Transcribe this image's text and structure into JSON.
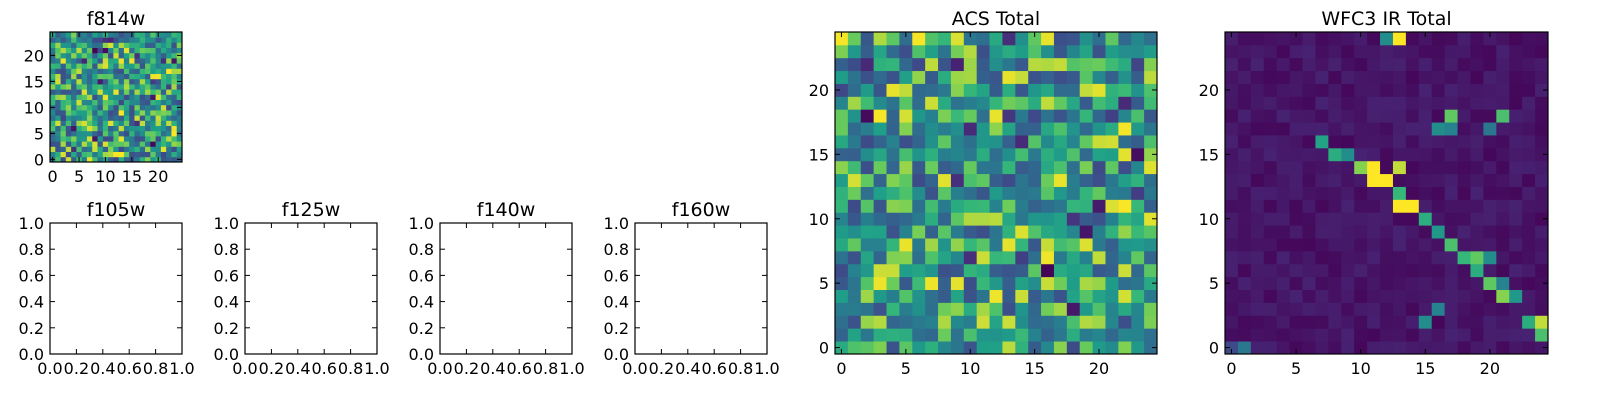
{
  "chart_data": [
    {
      "type": "heatmap",
      "title": "f814w",
      "xlim": [
        -0.5,
        24.5
      ],
      "ylim": [
        -0.5,
        24.5
      ],
      "xticks": [
        0,
        5,
        10,
        15,
        20
      ],
      "yticks": [
        0,
        5,
        10,
        15,
        20
      ],
      "grid": false,
      "colormap": "viridis",
      "grid_size": [
        25,
        25
      ],
      "values": "random uniform noise"
    },
    {
      "type": "scatter",
      "title": "f105w",
      "xlim": [
        0.0,
        1.0
      ],
      "ylim": [
        0.0,
        1.0
      ],
      "xticks": [
        "0.0",
        "0.2",
        "0.4",
        "0.6",
        "0.8",
        "1.0"
      ],
      "yticks": [
        "0.0",
        "0.2",
        "0.4",
        "0.6",
        "0.8",
        "1.0"
      ],
      "empty": true
    },
    {
      "type": "scatter",
      "title": "f125w",
      "xlim": [
        0.0,
        1.0
      ],
      "ylim": [
        0.0,
        1.0
      ],
      "xticks": [
        "0.0",
        "0.2",
        "0.4",
        "0.6",
        "0.8",
        "1.0"
      ],
      "yticks": [
        "0.0",
        "0.2",
        "0.4",
        "0.6",
        "0.8",
        "1.0"
      ],
      "empty": true
    },
    {
      "type": "scatter",
      "title": "f140w",
      "xlim": [
        0.0,
        1.0
      ],
      "ylim": [
        0.0,
        1.0
      ],
      "xticks": [
        "0.0",
        "0.2",
        "0.4",
        "0.6",
        "0.8",
        "1.0"
      ],
      "yticks": [
        "0.0",
        "0.2",
        "0.4",
        "0.6",
        "0.8",
        "1.0"
      ],
      "empty": true
    },
    {
      "type": "scatter",
      "title": "f160w",
      "xlim": [
        0.0,
        1.0
      ],
      "ylim": [
        0.0,
        1.0
      ],
      "xticks": [
        "0.0",
        "0.2",
        "0.4",
        "0.6",
        "0.8",
        "1.0"
      ],
      "yticks": [
        "0.0",
        "0.2",
        "0.4",
        "0.6",
        "0.8",
        "1.0"
      ],
      "empty": true
    },
    {
      "type": "heatmap",
      "title": "ACS Total",
      "xlim": [
        -0.5,
        24.5
      ],
      "ylim": [
        -0.5,
        24.5
      ],
      "xticks": [
        0,
        5,
        10,
        15,
        20
      ],
      "yticks": [
        0,
        5,
        10,
        15,
        20
      ],
      "grid": false,
      "colormap": "viridis",
      "grid_size": [
        25,
        25
      ],
      "values": "random uniform noise"
    },
    {
      "type": "heatmap",
      "title": "WFC3 IR Total",
      "xlim": [
        -0.5,
        24.5
      ],
      "ylim": [
        -0.5,
        24.5
      ],
      "xticks": [
        0,
        5,
        10,
        15,
        20
      ],
      "yticks": [
        0,
        5,
        10,
        15,
        20
      ],
      "grid": false,
      "colormap": "viridis",
      "grid_size": [
        25,
        25
      ],
      "values": "low background with a bright diagonal band from (24,1) to (7,16)",
      "bright_cells": [
        {
          "x": 13,
          "y": 24,
          "v": 1.0
        },
        {
          "x": 12,
          "y": 24,
          "v": 0.55
        },
        {
          "x": 16,
          "y": 17,
          "v": 0.55
        },
        {
          "x": 17,
          "y": 17,
          "v": 0.5
        },
        {
          "x": 17,
          "y": 18,
          "v": 0.85
        },
        {
          "x": 20,
          "y": 17,
          "v": 0.45
        },
        {
          "x": 21,
          "y": 18,
          "v": 0.8
        },
        {
          "x": 7,
          "y": 16,
          "v": 0.65
        },
        {
          "x": 8,
          "y": 15,
          "v": 0.7
        },
        {
          "x": 9,
          "y": 15,
          "v": 0.55
        },
        {
          "x": 10,
          "y": 14,
          "v": 0.9
        },
        {
          "x": 11,
          "y": 14,
          "v": 1.0
        },
        {
          "x": 13,
          "y": 14,
          "v": 0.95
        },
        {
          "x": 11,
          "y": 13,
          "v": 1.0
        },
        {
          "x": 12,
          "y": 13,
          "v": 1.0
        },
        {
          "x": 13,
          "y": 12,
          "v": 0.75
        },
        {
          "x": 13,
          "y": 11,
          "v": 1.0
        },
        {
          "x": 14,
          "y": 11,
          "v": 1.0
        },
        {
          "x": 15,
          "y": 10,
          "v": 0.7
        },
        {
          "x": 16,
          "y": 9,
          "v": 0.6
        },
        {
          "x": 17,
          "y": 8,
          "v": 0.8
        },
        {
          "x": 18,
          "y": 7,
          "v": 0.75
        },
        {
          "x": 19,
          "y": 7,
          "v": 0.85
        },
        {
          "x": 20,
          "y": 7,
          "v": 0.55
        },
        {
          "x": 19,
          "y": 6,
          "v": 0.7
        },
        {
          "x": 20,
          "y": 5,
          "v": 0.85
        },
        {
          "x": 21,
          "y": 4,
          "v": 0.9
        },
        {
          "x": 21,
          "y": 5,
          "v": 0.5
        },
        {
          "x": 22,
          "y": 4,
          "v": 0.6
        },
        {
          "x": 16,
          "y": 3,
          "v": 0.5
        },
        {
          "x": 15,
          "y": 2,
          "v": 0.55
        },
        {
          "x": 23,
          "y": 2,
          "v": 0.7
        },
        {
          "x": 24,
          "y": 2,
          "v": 0.95
        },
        {
          "x": 24,
          "y": 1,
          "v": 0.8
        },
        {
          "x": 0,
          "y": 0,
          "v": 0.25
        },
        {
          "x": 1,
          "y": 0,
          "v": 0.45
        }
      ]
    }
  ]
}
